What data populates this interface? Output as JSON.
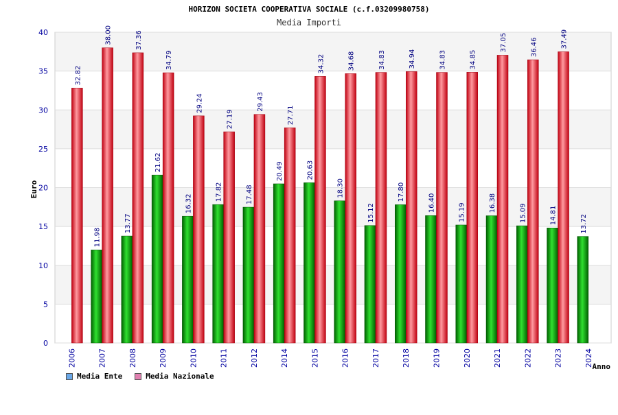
{
  "chart_data": {
    "type": "bar",
    "title": "HORIZON SOCIETA COOPERATIVA SOCIALE (c.f.03209980758)",
    "subtitle": "Media Importi",
    "xlabel": "Anno",
    "ylabel": "Euro",
    "ylim": [
      0,
      40
    ],
    "yticks": [
      0,
      5,
      10,
      15,
      20,
      25,
      30,
      35,
      40
    ],
    "grid": true,
    "categories": [
      "2006",
      "2007",
      "2008",
      "2009",
      "2010",
      "2011",
      "2012",
      "2014",
      "2015",
      "2016",
      "2017",
      "2018",
      "2019",
      "2020",
      "2021",
      "2022",
      "2023",
      "2024"
    ],
    "series": [
      {
        "name": "Media Ente",
        "color": "#00a000",
        "legend_color": "#6aa8e8",
        "values": [
          null,
          11.98,
          13.77,
          21.62,
          16.32,
          17.82,
          17.48,
          20.49,
          20.63,
          18.3,
          15.12,
          17.8,
          16.4,
          15.19,
          16.38,
          15.09,
          14.81,
          13.72
        ],
        "labels": [
          "",
          "11.98",
          "13.77",
          "21.62",
          "16.32",
          "17.82",
          "17.48",
          "20.49",
          "20.63",
          "18.30",
          "15.12",
          "17.80",
          "16.40",
          "15.19",
          "16.38",
          "15.09",
          "14.81",
          "13.72"
        ]
      },
      {
        "name": "Media Nazionale",
        "color": "#e01020",
        "legend_color": "#e080b0",
        "values": [
          32.82,
          38.0,
          37.36,
          34.79,
          29.24,
          27.19,
          29.43,
          27.71,
          34.32,
          34.68,
          34.83,
          34.94,
          34.83,
          34.85,
          37.05,
          36.46,
          37.49,
          null
        ],
        "labels": [
          "32.82",
          "38.00",
          "37.36",
          "34.79",
          "29.24",
          "27.19",
          "29.43",
          "27.71",
          "34.32",
          "34.68",
          "34.83",
          "34.94",
          "34.83",
          "34.85",
          "37.05",
          "36.46",
          "37.49",
          ""
        ]
      }
    ],
    "legend_position": "bottom-left"
  }
}
